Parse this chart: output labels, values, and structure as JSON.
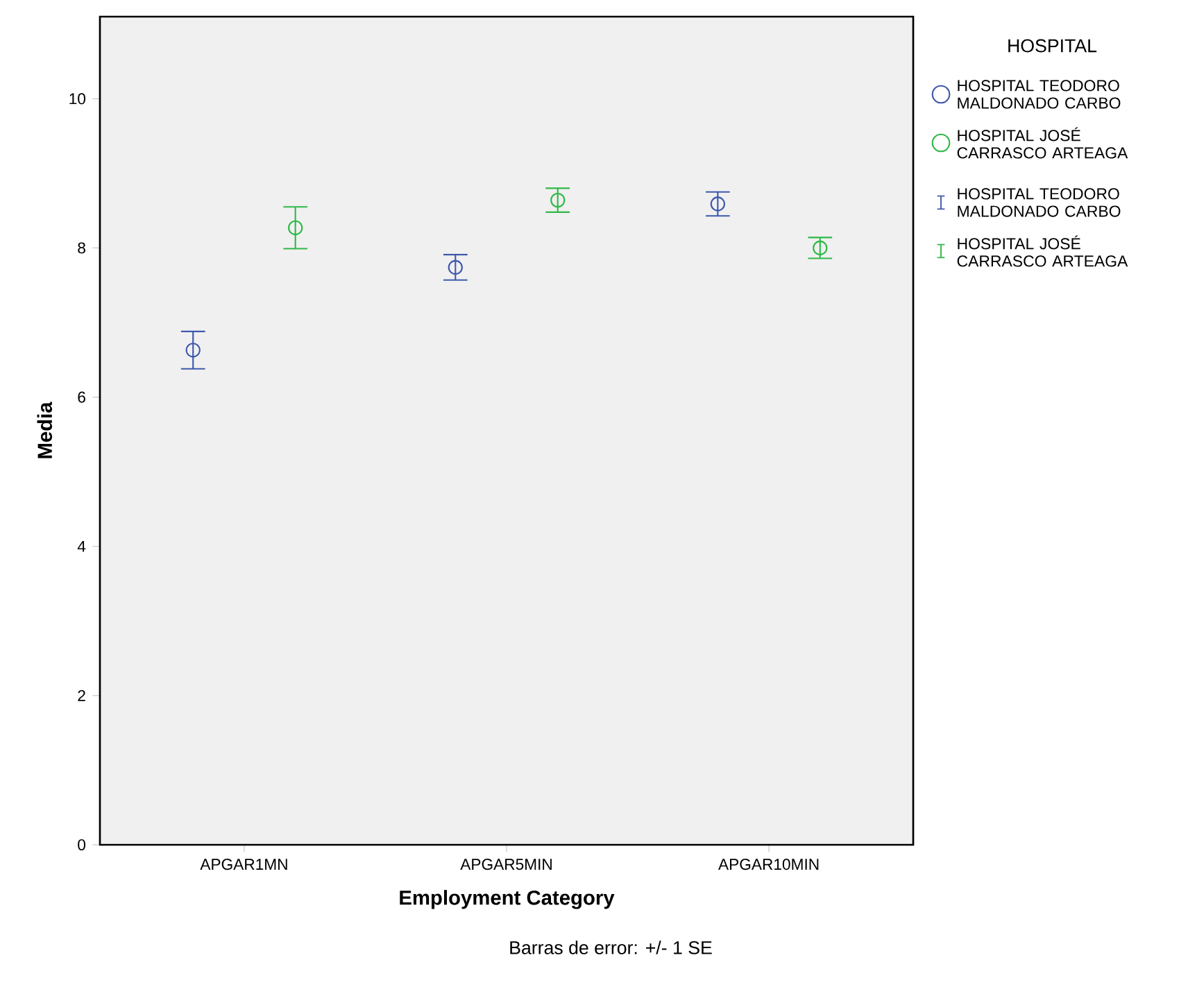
{
  "chart_data": {
    "type": "scatter",
    "xlabel": "Employment Category",
    "ylabel": "Media",
    "legend_title": "HOSPITAL",
    "annotations": [
      "Barras de error: +/- 1 SE"
    ],
    "categories": [
      "APGAR1MN",
      "APGAR5MIN",
      "APGAR10MIN"
    ],
    "ylim": [
      0,
      11.1
    ],
    "yticks": [
      0,
      2,
      4,
      6,
      8,
      10
    ],
    "marker": "circle",
    "legend": "right",
    "series": [
      {
        "name": "HOSPITAL TEODORO MALDONADO CARBO",
        "color": "#3e58ac",
        "values": [
          6.63,
          7.74,
          8.59
        ],
        "errors": [
          0.25,
          0.17,
          0.16
        ]
      },
      {
        "name": "HOSPITAL JOSÉ CARRASCO ARTEAGA",
        "color": "#2eb848",
        "values": [
          8.27,
          8.64,
          8.0
        ],
        "errors": [
          0.28,
          0.16,
          0.14
        ]
      }
    ]
  }
}
